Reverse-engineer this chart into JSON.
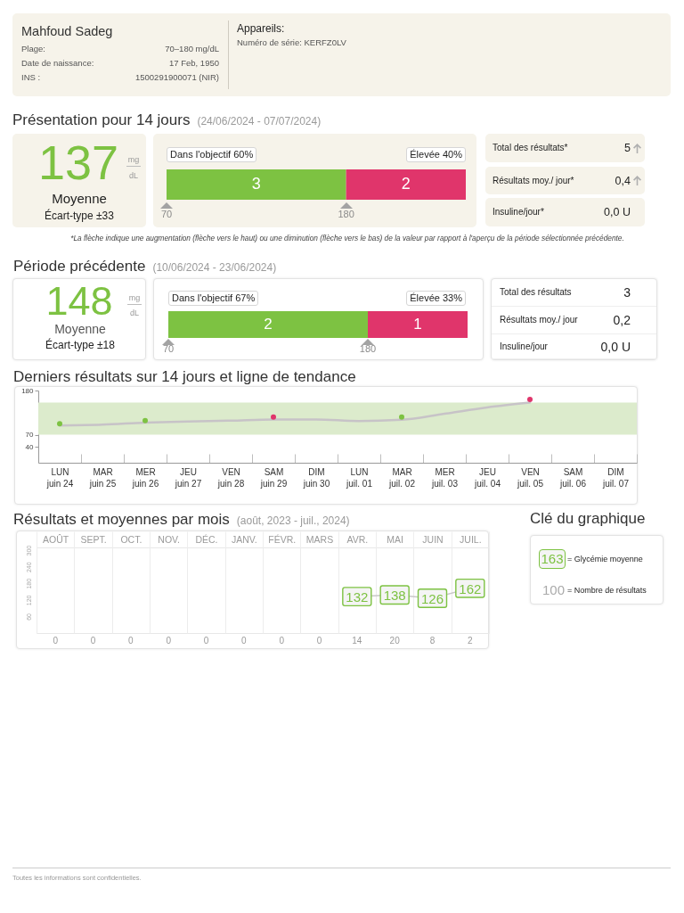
{
  "chart_data": [
    {
      "type": "other",
      "title": "Mahfoud Sadeg",
      "annotations": [
        "Plage:",
        "70–180 mg/dL",
        "Date de naissance:",
        "17 Feb, 1950",
        "INS :",
        "1500291900071 (NIR)"
      ]
    },
    {
      "type": "other",
      "title": "Appareils:",
      "annotations": [
        "Numéro de série: KERFZ0LV"
      ]
    },
    {
      "type": "other",
      "title": "Présentation pour 14 jours",
      "subtitle": "(24/06/2024 - 07/07/2024)",
      "annotations": [
        "137",
        "mg",
        "dL",
        "Moyenne",
        "Écart-type ±33"
      ]
    },
    {
      "type": "bar",
      "orientation": "horizontal",
      "stacked": true,
      "categories": [
        null
      ],
      "series": [
        {
          "name": "Dans l'objectif 60%",
          "color": "#7dc242",
          "values": [
            3
          ]
        },
        {
          "name": "Élevée 40%",
          "color": "#e0356b",
          "values": [
            2
          ]
        }
      ],
      "data_labels": true,
      "annotations": [
        "70",
        "180"
      ]
    },
    {
      "type": "other",
      "annotations": [
        "Total des résultats*",
        "5",
        "Résultats moy./ jour*",
        "0,4",
        "Insuline/jour*",
        "0,0 U",
        "*La flèche indique une augmentation (flèche vers le haut) ou une diminution (flèche vers le bas) de la valeur par rapport à l'aperçu de la période sélectionnée précédente."
      ]
    },
    {
      "type": "other",
      "title": "Période précédente",
      "subtitle": "(10/06/2024 - 23/06/2024)",
      "annotations": [
        "148",
        "mg",
        "dL",
        "Moyenne",
        "Écart-type ±18"
      ]
    },
    {
      "type": "bar",
      "orientation": "horizontal",
      "stacked": true,
      "categories": [
        null
      ],
      "series": [
        {
          "name": "Dans l'objectif 67%",
          "color": "#7dc242",
          "values": [
            2
          ]
        },
        {
          "name": "Élevée 33%",
          "color": "#e0356b",
          "values": [
            1
          ]
        }
      ],
      "data_labels": true,
      "annotations": [
        "70",
        "180"
      ]
    },
    {
      "type": "other",
      "annotations": [
        "Total des résultats",
        "3",
        "Résultats moy./ jour",
        "0,2",
        "Insuline/jour",
        "0,0 U"
      ]
    },
    {
      "type": "scatter",
      "title": "Derniers résultats sur 14 jours et ligne de tendance",
      "categories": [
        "LUN juin 24",
        "MAR juin 25",
        "MER juin 26",
        "JEU juin 27",
        "VEN juin 28",
        "SAM juin 29",
        "DIM juin 30",
        "LUN juil. 01",
        "MAR juil. 02",
        "MER juil. 03",
        "JEU juil. 04",
        "VEN juil. 05",
        "SAM juil. 06",
        "DIM juil. 07"
      ],
      "series": [
        {
          "type": "line",
          "color": "#c7c3c7",
          "values": [
            93,
            95,
            100,
            103,
            105,
            108,
            108,
            104,
            107,
            122,
            138,
            150,
            null,
            null
          ]
        },
        {
          "type": "scatter",
          "marker": "circle",
          "color": "#7dc242",
          "values": [
            97,
            null,
            105,
            null,
            null,
            null,
            null,
            null,
            114,
            null,
            null,
            null,
            null,
            null
          ]
        },
        {
          "type": "scatter",
          "marker": "circle",
          "color": "#e0356b",
          "values": [
            null,
            null,
            null,
            null,
            null,
            114,
            null,
            null,
            null,
            null,
            null,
            158,
            null,
            null
          ]
        }
      ],
      "ylim": [
        0,
        180
      ],
      "yticks": [
        40,
        70,
        180
      ],
      "bands": [
        {
          "axis": "y",
          "from": 70,
          "to": 150,
          "color": "#dcebcc"
        }
      ]
    },
    {
      "type": "line",
      "title": "Résultats et moyennes par mois",
      "subtitle": "(août, 2023 - juil., 2024)",
      "categories": [
        "AOÛT",
        "SEPT.",
        "OCT.",
        "NOV.",
        "DÉC.",
        "JANV.",
        "FÉVR.",
        "MARS",
        "AVR.",
        "MAI",
        "JUIN",
        "JUIL."
      ],
      "series": [
        {
          "color": "#7dc242",
          "values": [
            null,
            null,
            null,
            null,
            null,
            null,
            null,
            null,
            132,
            138,
            126,
            162
          ]
        }
      ],
      "marker": "square",
      "data_labels": true,
      "ylim": [
        0,
        310
      ],
      "yticks": [
        60,
        120,
        180,
        240,
        300
      ],
      "grid": "x",
      "annotations": [
        "0",
        "0",
        "0",
        "0",
        "0",
        "0",
        "0",
        "0",
        "14",
        "20",
        "8",
        "2"
      ]
    },
    {
      "type": "other",
      "title": "Clé du graphique",
      "annotations": [
        "163",
        "= Glycémie moyenne",
        "100",
        "= Nombre de résultats"
      ]
    },
    {
      "type": "other",
      "annotations": [
        "Toutes les informations sont confidentielles."
      ]
    }
  ]
}
